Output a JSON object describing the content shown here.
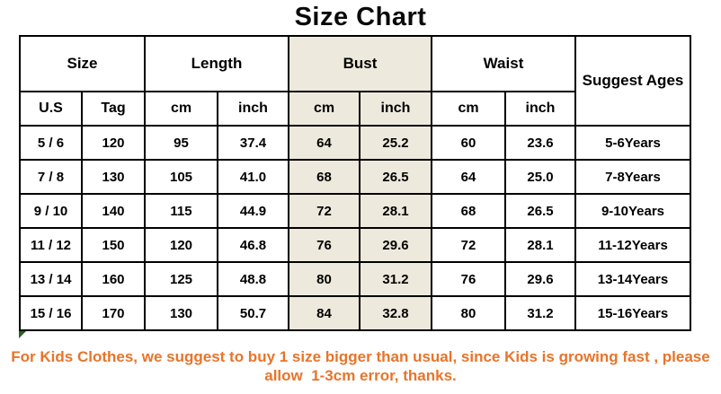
{
  "title": "Size Chart",
  "table": {
    "groups": [
      {
        "label": "Size",
        "span": 2
      },
      {
        "label": "Length",
        "span": 2
      },
      {
        "label": "Bust",
        "span": 2,
        "highlighted": true
      },
      {
        "label": "Waist",
        "span": 2
      },
      {
        "label": "Suggest Ages",
        "span": 1
      }
    ],
    "subheaders": [
      "U.S",
      "Tag",
      "cm",
      "inch",
      "cm",
      "inch",
      "cm",
      "inch"
    ],
    "highlight_columns": [
      4,
      5
    ],
    "highlight_color": "#ede9dc",
    "rows": [
      [
        "5 / 6",
        "120",
        "95",
        "37.4",
        "64",
        "25.2",
        "60",
        "23.6",
        "5-6Years"
      ],
      [
        "7 / 8",
        "130",
        "105",
        "41.0",
        "68",
        "26.5",
        "64",
        "25.0",
        "7-8Years"
      ],
      [
        "9 / 10",
        "140",
        "115",
        "44.9",
        "72",
        "28.1",
        "68",
        "26.5",
        "9-10Years"
      ],
      [
        "11 / 12",
        "150",
        "120",
        "46.8",
        "76",
        "29.6",
        "72",
        "28.1",
        "11-12Years"
      ],
      [
        "13 / 14",
        "160",
        "125",
        "48.8",
        "80",
        "31.2",
        "76",
        "29.6",
        "13-14Years"
      ],
      [
        "15 / 16",
        "170",
        "130",
        "50.7",
        "84",
        "32.8",
        "80",
        "31.2",
        "15-16Years"
      ]
    ]
  },
  "note": {
    "line1": "For Kids Clothes, we suggest to buy 1 size bigger than usual, since Kids is growing fast , please",
    "line2": "allow  1-3cm error, thanks.",
    "color": "#e8742a"
  }
}
